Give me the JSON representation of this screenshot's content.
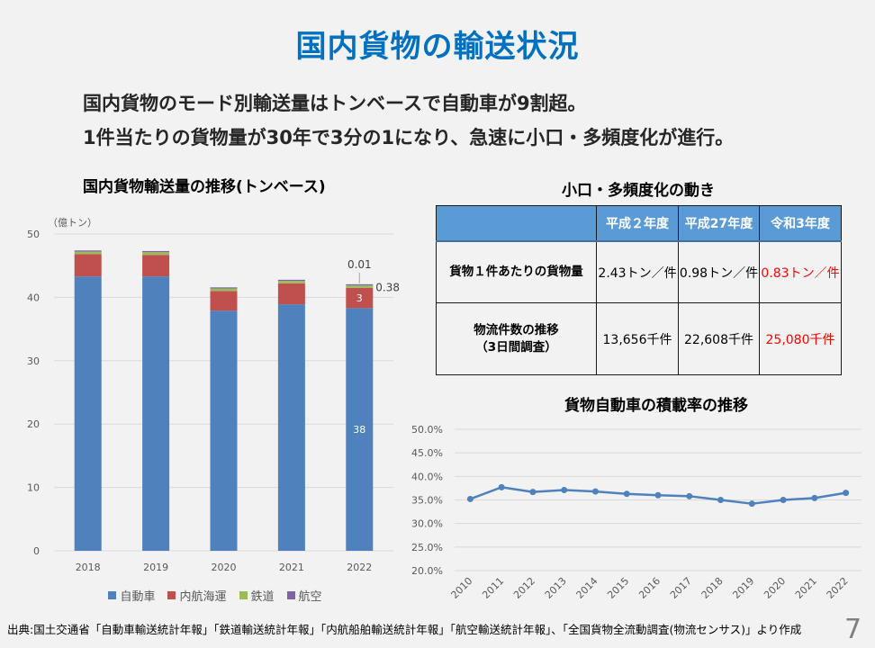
{
  "slide": {
    "title": "国内貨物の輸送状況",
    "summary": [
      "国内貨物のモード別輸送量はトンベースで自動車が9割超。",
      "1件当たりの貨物量が30年で3分の1になり、急速に小口・多頻度化が進行。"
    ],
    "source": "出典:国土交通省「自動車輸送統計年報」「鉄道輸送統計年報」「内航船舶輸送統計年報」「航空輸送統計年報」、「全国貨物全流動調査(物流センサス)」より作成",
    "page_number": "7"
  },
  "colors": {
    "title": "#0070c0",
    "table_header": "#5b9bd5",
    "highlight": "#ff0000",
    "background": "#f2f2f2"
  },
  "table": {
    "title": "小口・多頻度化の動き",
    "headers": [
      "",
      "平成２年度",
      "平成27年度",
      "令和3年度"
    ],
    "rows": [
      {
        "label": [
          "貨物１件あたりの貨物量"
        ],
        "values": [
          "2.43トン／件",
          "0.98トン／件",
          "0.83トン／件"
        ]
      },
      {
        "label": [
          "物流件数の推移",
          "（3日間調査）"
        ],
        "values": [
          "13,656千件",
          "22,608千件",
          "25,080千件"
        ]
      }
    ]
  },
  "chart_data": [
    {
      "type": "bar",
      "stacked": true,
      "title": "国内貨物輸送量の推移(トンベース)",
      "ylabel": "（億トン）",
      "xlabel": "",
      "categories": [
        "2018",
        "2019",
        "2020",
        "2021",
        "2022"
      ],
      "ylim": [
        0,
        50
      ],
      "yticks": [
        0,
        10,
        20,
        30,
        40,
        50
      ],
      "grid": true,
      "legend_position": "bottom",
      "series": [
        {
          "key": "automobile",
          "name": "自動車",
          "color": "#4f81bd",
          "values": [
            43.3,
            43.3,
            37.9,
            38.9,
            38.3
          ]
        },
        {
          "key": "coastal-shipping",
          "name": "内航海運",
          "color": "#c0504d",
          "values": [
            3.5,
            3.4,
            3.1,
            3.3,
            3.2
          ]
        },
        {
          "key": "railway",
          "name": "鉄道",
          "color": "#9bbb59",
          "values": [
            0.42,
            0.43,
            0.39,
            0.39,
            0.38
          ]
        },
        {
          "key": "aviation",
          "name": "航空",
          "color": "#8064a2",
          "values": [
            0.01,
            0.01,
            0.01,
            0.01,
            0.01
          ]
        }
      ],
      "data_labels": [
        {
          "series": 0,
          "category": 4,
          "text": "38",
          "position": "center"
        },
        {
          "series": 1,
          "category": 4,
          "text": "3",
          "position": "center"
        },
        {
          "series": 2,
          "category": 4,
          "text": "0.38",
          "position": "right"
        },
        {
          "series": 3,
          "category": 4,
          "text": "0.01",
          "position": "above"
        }
      ]
    },
    {
      "type": "line",
      "title": "貨物自動車の積載率の推移",
      "xlabel": "",
      "ylabel": "",
      "x": [
        "2010",
        "2011",
        "2012",
        "2013",
        "2014",
        "2015",
        "2016",
        "2017",
        "2018",
        "2019",
        "2020",
        "2021",
        "2022"
      ],
      "series": [
        {
          "name": "積載率",
          "color": "#4f81bd",
          "values": [
            35.2,
            37.7,
            36.7,
            37.1,
            36.8,
            36.3,
            36.0,
            35.8,
            35.0,
            34.2,
            35.0,
            35.4,
            36.5
          ]
        }
      ],
      "ylim": [
        20,
        50
      ],
      "yticks": [
        20,
        25,
        30,
        35,
        40,
        45,
        50
      ],
      "ytick_labels": [
        "20.0%",
        "25.0%",
        "30.0%",
        "35.0%",
        "40.0%",
        "45.0%",
        "50.0%"
      ],
      "grid": true,
      "legend_position": "none"
    }
  ]
}
